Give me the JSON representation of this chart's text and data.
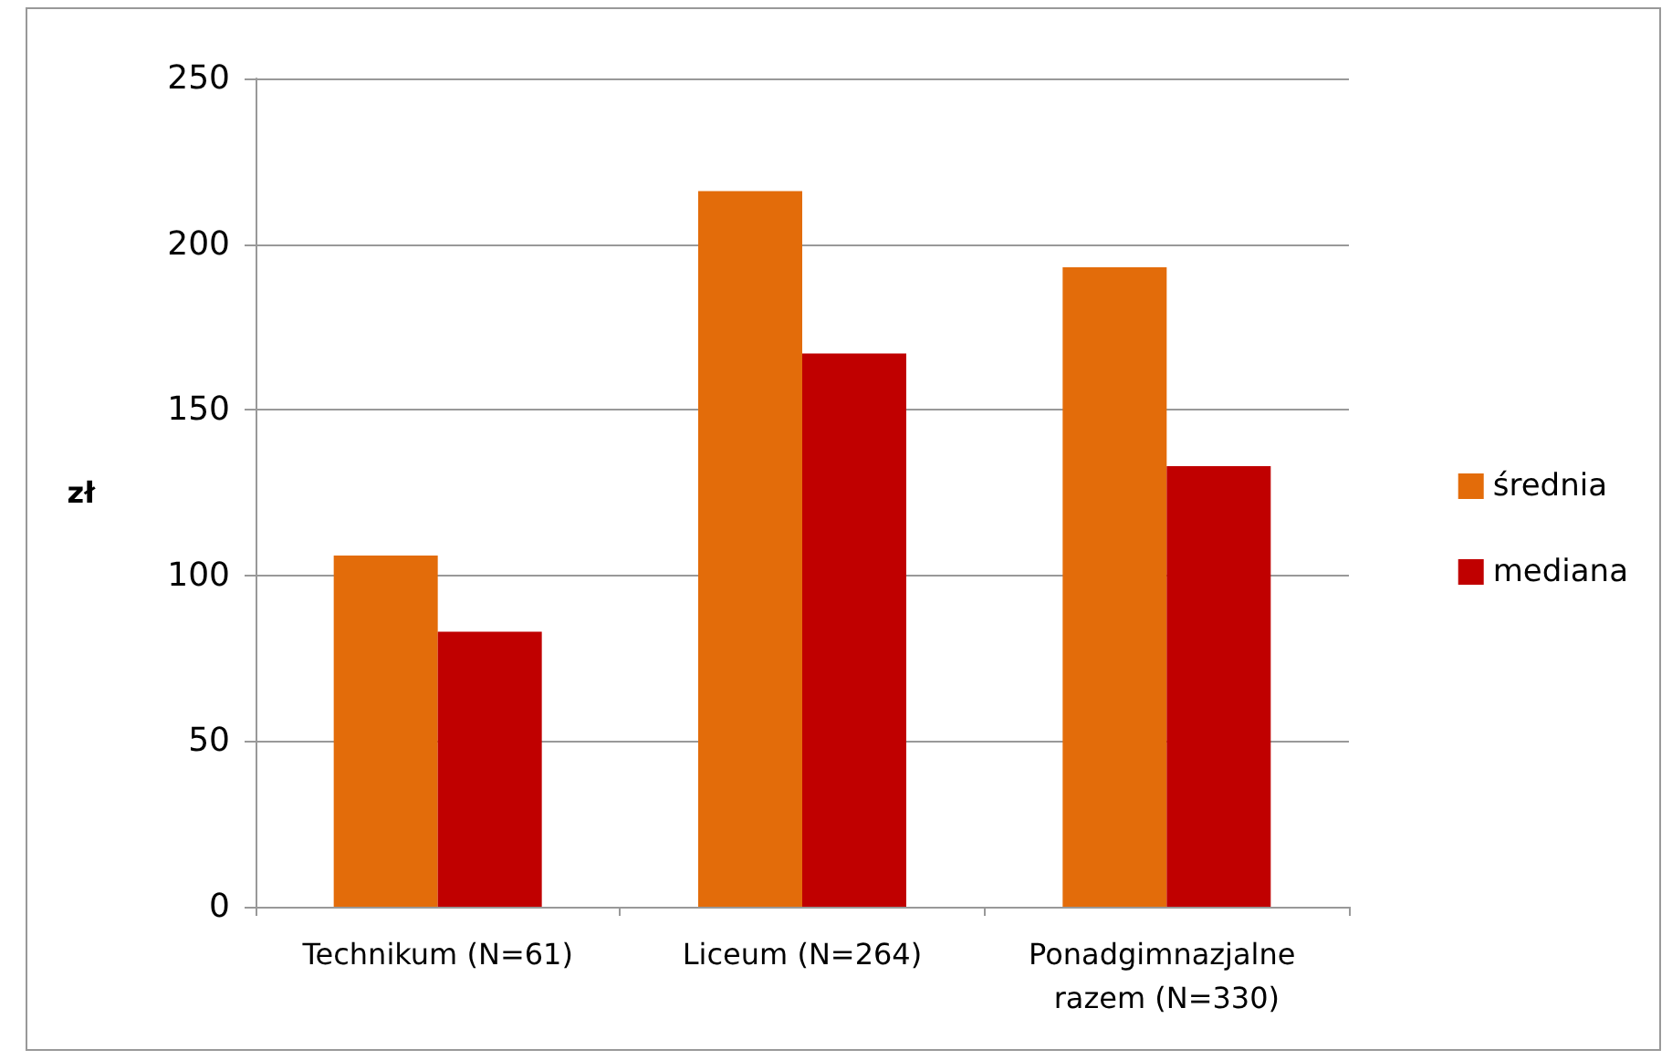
{
  "chart_data": {
    "type": "bar",
    "ylabel": "zł",
    "categories": [
      "Technikum (N=61)",
      "Liceum (N=264)",
      "Ponadgimnazjalne razem (N=330)"
    ],
    "series": [
      {
        "name": "średnia",
        "color": "#e36c0a",
        "values": [
          106,
          216,
          193
        ]
      },
      {
        "name": "mediana",
        "color": "#c00000",
        "values": [
          83,
          167,
          133
        ]
      }
    ],
    "ylim": [
      0,
      250
    ],
    "yticks": [
      0,
      50,
      100,
      150,
      200,
      250
    ],
    "grid": "y",
    "legend": "right"
  }
}
